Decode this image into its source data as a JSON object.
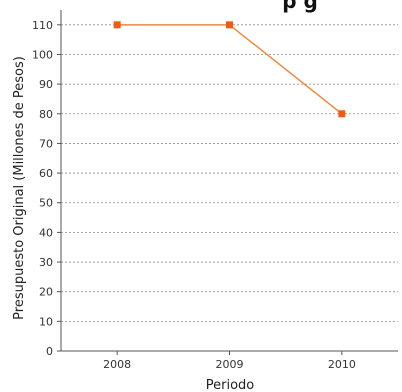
{
  "chart_data": {
    "type": "line",
    "title": "",
    "title_fragment": "p g",
    "xlabel": "Periodo",
    "ylabel": "Presupuesto Original (Millones de Pesos)",
    "categories": [
      "2008",
      "2009",
      "2010"
    ],
    "series": [
      {
        "values": [
          110,
          110,
          80
        ],
        "color": "#f0873c",
        "marker_color": "#f05a14"
      }
    ],
    "ylim": [
      0,
      115
    ],
    "yticks": [
      0,
      10,
      20,
      30,
      40,
      50,
      60,
      70,
      80,
      90,
      100,
      110
    ],
    "grid": true,
    "legend": "none"
  }
}
